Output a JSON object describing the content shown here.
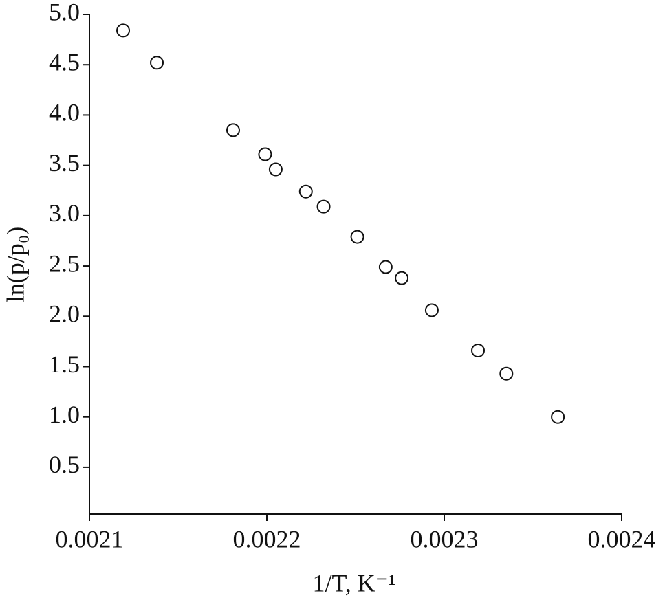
{
  "chart_data": {
    "type": "scatter",
    "x_label": "1/T, K⁻¹",
    "y_label": "ln(p/p₀)",
    "x": [
      0.002119,
      0.002138,
      0.002181,
      0.002199,
      0.002205,
      0.002222,
      0.002232,
      0.002251,
      0.002267,
      0.002276,
      0.002293,
      0.002319,
      0.002335,
      0.002364
    ],
    "values": [
      4.84,
      4.52,
      3.85,
      3.61,
      3.46,
      3.24,
      3.09,
      2.79,
      2.49,
      2.38,
      2.06,
      1.66,
      1.43,
      1.0
    ],
    "color": "#111111",
    "xlim": [
      0.0021,
      0.0024
    ],
    "ylim": [
      0.035,
      5
    ],
    "xticks": [
      0.0021,
      0.0022,
      0.0023,
      0.0024
    ],
    "yticks": [
      {
        "value": 5,
        "label": "5.0"
      },
      4.5,
      {
        "value": 4,
        "label": "4.0"
      },
      3.5,
      {
        "value": 3,
        "label": "3.0"
      },
      2.5,
      {
        "value": 2,
        "label": "2.0"
      },
      1.5,
      {
        "value": 1,
        "label": "1.0"
      },
      0.5
    ]
  }
}
